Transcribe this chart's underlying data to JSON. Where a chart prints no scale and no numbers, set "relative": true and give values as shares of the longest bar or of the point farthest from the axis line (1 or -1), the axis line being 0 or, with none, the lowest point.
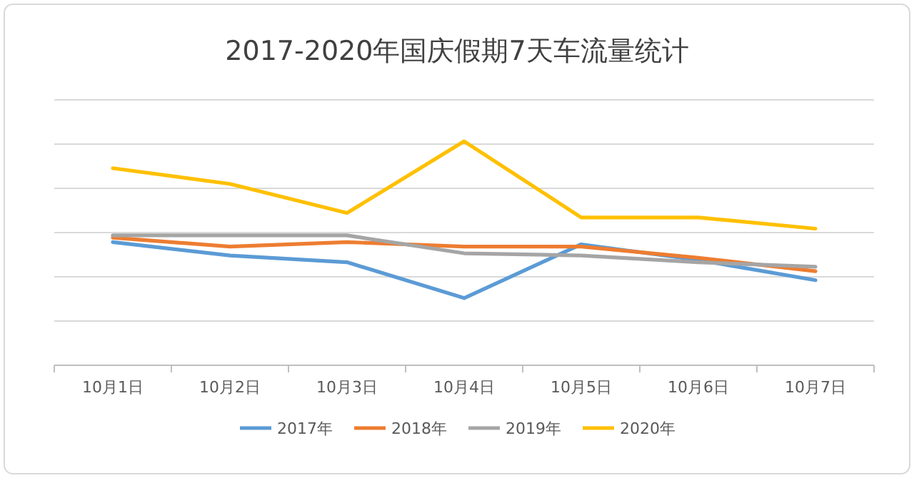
{
  "chart_data": {
    "type": "line",
    "title": "2017-2020年国庆假期7天车流量统计",
    "relative": true,
    "grid": "y",
    "legend": "bottom",
    "marker": "none",
    "line_style": "solid",
    "categories": [
      "10月1日",
      "10月2日",
      "10月3日",
      "10月4日",
      "10月5日",
      "10月6日",
      "10月7日"
    ],
    "series": [
      {
        "name": "2017年",
        "color": "#5b9bd5",
        "values": [
          0.55,
          0.49,
          0.46,
          0.3,
          0.54,
          0.47,
          0.38
        ]
      },
      {
        "name": "2018年",
        "color": "#ed7d31",
        "values": [
          0.57,
          0.53,
          0.55,
          0.53,
          0.53,
          0.48,
          0.42
        ]
      },
      {
        "name": "2019年",
        "color": "#a5a5a5",
        "values": [
          0.58,
          0.58,
          0.58,
          0.5,
          0.49,
          0.46,
          0.44
        ]
      },
      {
        "name": "2020年",
        "color": "#ffc000",
        "values": [
          0.88,
          0.81,
          0.68,
          1.0,
          0.66,
          0.66,
          0.61
        ]
      }
    ]
  }
}
